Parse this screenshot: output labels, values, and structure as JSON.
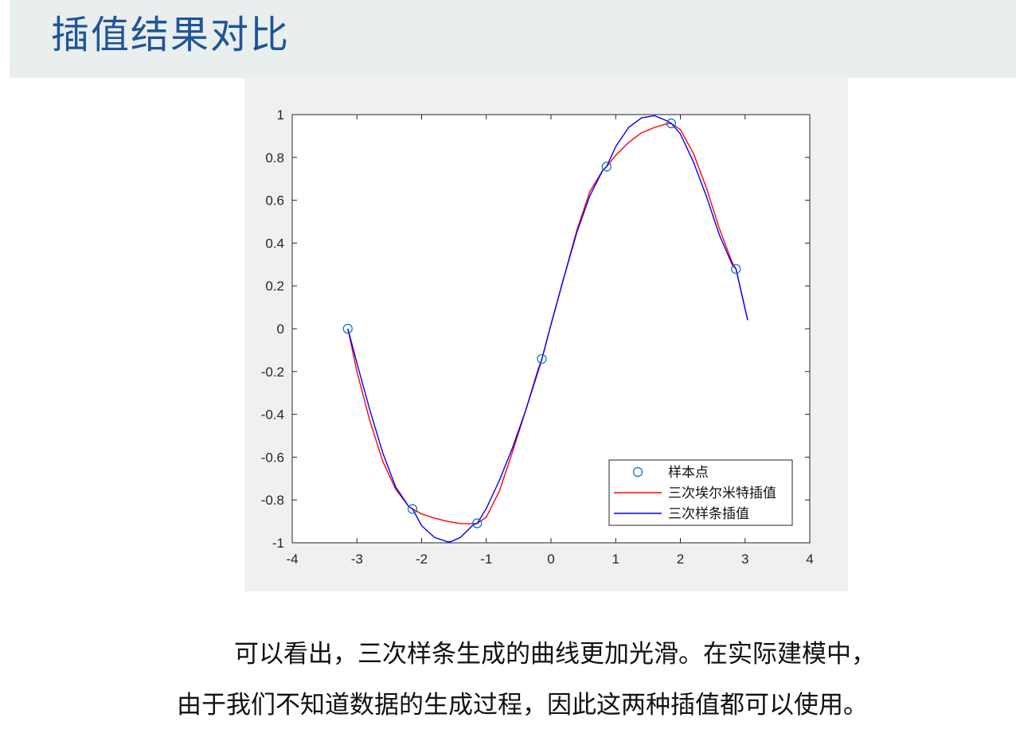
{
  "slide": {
    "title": "插值结果对比",
    "caption_line1": "可以看出，三次样条生成的曲线更加光滑。在实际建模中，",
    "caption_line2": "由于我们不知道数据的生成过程，因此这两种插值都可以使用。"
  },
  "chart_data": {
    "type": "line",
    "xlim": [
      -4,
      4
    ],
    "ylim": [
      -1,
      1
    ],
    "x_ticks": [
      -4,
      -3,
      -2,
      -1,
      0,
      1,
      2,
      3,
      4
    ],
    "y_ticks": [
      -1,
      -0.8,
      -0.6,
      -0.4,
      -0.2,
      0,
      0.2,
      0.4,
      0.6,
      0.8,
      1
    ],
    "grid": false,
    "legend_position": "bottom-right",
    "series": [
      {
        "name": "样本点",
        "kind": "scatter",
        "marker": "circle",
        "color": "#0072bd",
        "x": [
          -3.1416,
          -2.1416,
          -1.1416,
          -0.1416,
          0.8584,
          1.8584,
          2.8584
        ],
        "y": [
          0,
          -0.842,
          -0.909,
          -0.141,
          0.757,
          0.959,
          0.279
        ]
      },
      {
        "name": "三次埃尔米特插值",
        "kind": "line",
        "color": "#ff0000",
        "x": [
          -3.14,
          -3.0,
          -2.8,
          -2.6,
          -2.4,
          -2.2,
          -2.14,
          -2.0,
          -1.8,
          -1.6,
          -1.4,
          -1.2,
          -1.14,
          -1.0,
          -0.8,
          -0.6,
          -0.4,
          -0.2,
          -0.14,
          0.0,
          0.2,
          0.4,
          0.6,
          0.8,
          0.86,
          1.0,
          1.2,
          1.4,
          1.6,
          1.8,
          1.86,
          2.0,
          2.2,
          2.4,
          2.6,
          2.8,
          2.86,
          3.04
        ],
        "y": [
          0,
          -0.2,
          -0.43,
          -0.62,
          -0.75,
          -0.83,
          -0.842,
          -0.865,
          -0.885,
          -0.9,
          -0.91,
          -0.911,
          -0.909,
          -0.88,
          -0.76,
          -0.58,
          -0.39,
          -0.19,
          -0.141,
          0.02,
          0.24,
          0.46,
          0.64,
          0.74,
          0.757,
          0.81,
          0.87,
          0.915,
          0.94,
          0.958,
          0.959,
          0.93,
          0.82,
          0.66,
          0.47,
          0.31,
          0.279,
          0.04
        ]
      },
      {
        "name": "三次样条插值",
        "kind": "line",
        "color": "#0000ff",
        "x": [
          -3.14,
          -3.0,
          -2.8,
          -2.6,
          -2.4,
          -2.2,
          -2.14,
          -2.0,
          -1.8,
          -1.6,
          -1.55,
          -1.4,
          -1.2,
          -1.14,
          -1.0,
          -0.8,
          -0.6,
          -0.4,
          -0.2,
          -0.14,
          0.0,
          0.2,
          0.4,
          0.6,
          0.8,
          0.86,
          1.0,
          1.2,
          1.4,
          1.6,
          1.8,
          1.86,
          2.0,
          2.2,
          2.4,
          2.6,
          2.8,
          2.86,
          3.04
        ],
        "y": [
          0,
          -0.16,
          -0.38,
          -0.58,
          -0.74,
          -0.83,
          -0.842,
          -0.92,
          -0.975,
          -0.995,
          -0.995,
          -0.975,
          -0.915,
          -0.909,
          -0.84,
          -0.71,
          -0.56,
          -0.39,
          -0.2,
          -0.141,
          0.02,
          0.24,
          0.45,
          0.62,
          0.74,
          0.757,
          0.85,
          0.94,
          0.985,
          0.995,
          0.97,
          0.959,
          0.91,
          0.78,
          0.62,
          0.44,
          0.3,
          0.279,
          0.04
        ]
      }
    ]
  }
}
